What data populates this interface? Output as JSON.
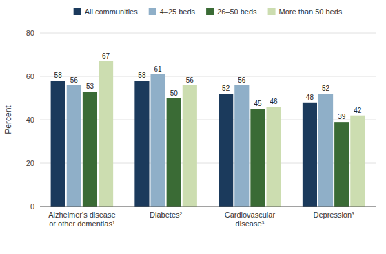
{
  "chart_data": {
    "type": "bar",
    "categories": [
      "Alzheimer's disease\nor other dementias¹",
      "Diabetes²",
      "Cardiovascular\ndisease³",
      "Depression³"
    ],
    "series": [
      {
        "name": "All communities",
        "color": "#1b3a5c",
        "values": [
          58,
          58,
          52,
          48
        ]
      },
      {
        "name": "4–25 beds",
        "color": "#8fafc8",
        "values": [
          56,
          61,
          56,
          52
        ]
      },
      {
        "name": "26–50 beds",
        "color": "#3a6b35",
        "values": [
          53,
          50,
          45,
          39
        ]
      },
      {
        "name": "More than 50 beds",
        "color": "#ccddb0",
        "values": [
          67,
          56,
          46,
          42
        ]
      }
    ],
    "ylabel": "Percent",
    "ylim": [
      0,
      80
    ],
    "yticks": [
      0,
      20,
      40,
      60,
      80
    ],
    "grid": true,
    "legend": "top",
    "data_labels": true
  }
}
